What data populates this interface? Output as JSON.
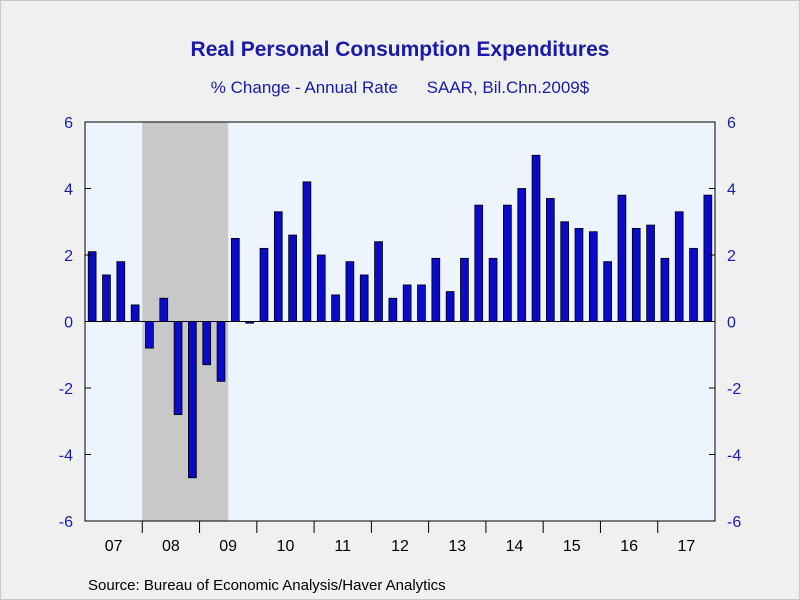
{
  "title": "Real Personal Consumption Expenditures",
  "subtitle_left": "% Change - Annual Rate",
  "subtitle_right": "SAAR, Bil.Chn.2009$",
  "source": "Source:  Bureau of Economic Analysis/Haver Analytics",
  "colors": {
    "bar": "#0a0ac8",
    "bar_edge": "#000000",
    "plot_bg": "#eef4fe",
    "recession": "#c8c8c8",
    "axis_text": "#1a1aa8",
    "title_text": "#1a1aa8"
  },
  "chart_data": {
    "type": "bar",
    "ylim": [
      -6,
      6
    ],
    "yticks": [
      -6,
      -4,
      -2,
      0,
      2,
      4,
      6
    ],
    "grid": false,
    "right_axis": true,
    "recession_shading": {
      "start": "2008Q1",
      "end": "2009Q2"
    },
    "year_labels": [
      "07",
      "08",
      "09",
      "10",
      "11",
      "12",
      "13",
      "14",
      "15",
      "16",
      "17"
    ],
    "categories": [
      "2007Q1",
      "2007Q2",
      "2007Q3",
      "2007Q4",
      "2008Q1",
      "2008Q2",
      "2008Q3",
      "2008Q4",
      "2009Q1",
      "2009Q2",
      "2009Q3",
      "2009Q4",
      "2010Q1",
      "2010Q2",
      "2010Q3",
      "2010Q4",
      "2011Q1",
      "2011Q2",
      "2011Q3",
      "2011Q4",
      "2012Q1",
      "2012Q2",
      "2012Q3",
      "2012Q4",
      "2013Q1",
      "2013Q2",
      "2013Q3",
      "2013Q4",
      "2014Q1",
      "2014Q2",
      "2014Q3",
      "2014Q4",
      "2015Q1",
      "2015Q2",
      "2015Q3",
      "2015Q4",
      "2016Q1",
      "2016Q2",
      "2016Q3",
      "2016Q4",
      "2017Q1",
      "2017Q2",
      "2017Q3",
      "2017Q4"
    ],
    "values": [
      2.1,
      1.4,
      1.8,
      0.5,
      -0.8,
      0.7,
      -2.8,
      -4.7,
      -1.3,
      -1.8,
      2.5,
      -0.05,
      2.2,
      3.3,
      2.6,
      4.2,
      2.0,
      0.8,
      1.8,
      1.4,
      2.4,
      0.7,
      1.1,
      1.1,
      1.9,
      0.9,
      1.9,
      3.5,
      1.9,
      3.5,
      4.0,
      5.0,
      3.7,
      3.0,
      2.8,
      2.7,
      1.8,
      3.8,
      2.8,
      2.9,
      1.9,
      3.3,
      2.2,
      3.8
    ]
  }
}
